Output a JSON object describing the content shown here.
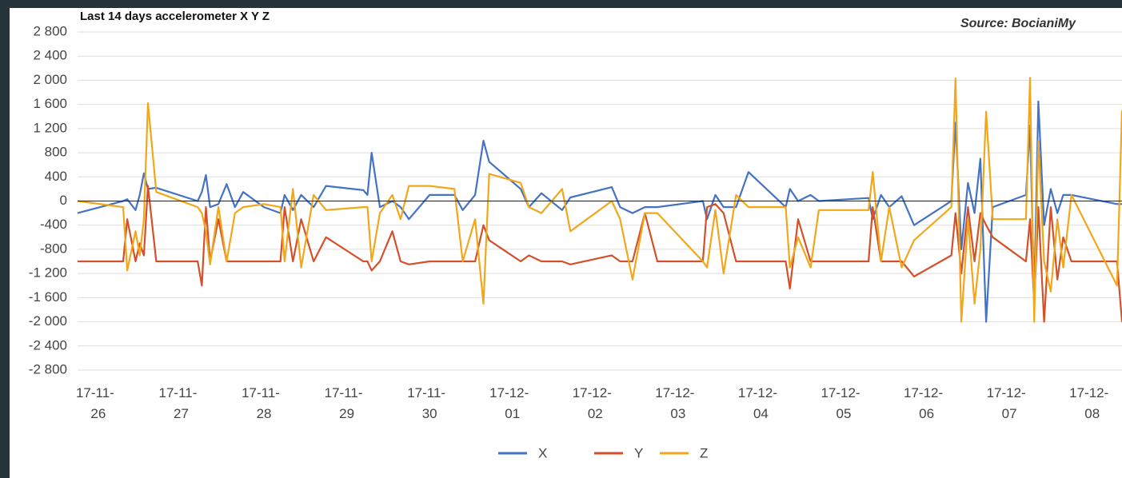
{
  "chart_data": {
    "type": "line",
    "title": "Last 14 days accelerometer X Y Z",
    "source": "Source: BocianiMy",
    "grid": true,
    "legend": "bottom",
    "xlim": [
      -0.25,
      12.36
    ],
    "xticks": [
      {
        "value": 0,
        "label": "17-11-26"
      },
      {
        "value": 1,
        "label": "17-11-27"
      },
      {
        "value": 2,
        "label": "17-11-28"
      },
      {
        "value": 3,
        "label": "17-11-29"
      },
      {
        "value": 4,
        "label": "17-11-30"
      },
      {
        "value": 5,
        "label": "17-12-01"
      },
      {
        "value": 6,
        "label": "17-12-02"
      },
      {
        "value": 7,
        "label": "17-12-03"
      },
      {
        "value": 8,
        "label": "17-12-04"
      },
      {
        "value": 9,
        "label": "17-12-05"
      },
      {
        "value": 10,
        "label": "17-12-06"
      },
      {
        "value": 11,
        "label": "17-12-07"
      },
      {
        "value": 12,
        "label": "17-12-08"
      }
    ],
    "ylim": [
      -2800,
      2800
    ],
    "yticks": [
      {
        "value": 2800,
        "label": "2 800"
      },
      {
        "value": 2400,
        "label": "2 400"
      },
      {
        "value": 2000,
        "label": "2 000"
      },
      {
        "value": 1600,
        "label": "1 600"
      },
      {
        "value": 1200,
        "label": "1 200"
      },
      800,
      400,
      0,
      -400,
      -800,
      {
        "value": -1200,
        "label": "-1 200"
      },
      {
        "value": -1600,
        "label": "-1 600"
      },
      {
        "value": -2000,
        "label": "-2 000"
      },
      {
        "value": -2400,
        "label": "-2 400"
      },
      {
        "value": -2800,
        "label": "-2 800"
      }
    ],
    "x": [
      -0.25,
      0.3,
      0.35,
      0.45,
      0.5,
      0.55,
      0.6,
      0.7,
      1.2,
      1.25,
      1.3,
      1.35,
      1.45,
      1.55,
      1.65,
      1.75,
      2.0,
      2.2,
      2.25,
      2.35,
      2.45,
      2.6,
      2.75,
      3.2,
      3.25,
      3.3,
      3.4,
      3.55,
      3.65,
      3.75,
      4.0,
      4.3,
      4.4,
      4.55,
      4.65,
      4.72,
      5.1,
      5.2,
      5.35,
      5.6,
      5.7,
      6.2,
      6.3,
      6.45,
      6.6,
      6.75,
      7.3,
      7.35,
      7.45,
      7.55,
      7.7,
      7.85,
      8.3,
      8.35,
      8.45,
      8.6,
      8.7,
      9.3,
      9.35,
      9.45,
      9.55,
      9.7,
      9.85,
      10.3,
      10.35,
      10.42,
      10.5,
      10.58,
      10.65,
      10.72,
      10.8,
      11.2,
      11.25,
      11.3,
      11.35,
      11.42,
      11.5,
      11.58,
      11.65,
      11.75,
      12.3,
      12.36
    ],
    "series": [
      {
        "name": "X",
        "color": "#4472c4",
        "values": [
          -200,
          0,
          30,
          -150,
          100,
          460,
          200,
          220,
          0,
          150,
          430,
          -100,
          -50,
          280,
          -100,
          150,
          -100,
          -200,
          100,
          -150,
          100,
          -100,
          250,
          180,
          100,
          800,
          -100,
          0,
          -100,
          -300,
          100,
          100,
          -150,
          100,
          1000,
          650,
          200,
          -100,
          130,
          -150,
          60,
          230,
          -100,
          -200,
          -100,
          -100,
          0,
          -300,
          100,
          -100,
          -100,
          480,
          -100,
          200,
          0,
          100,
          0,
          50,
          -300,
          100,
          -100,
          80,
          -400,
          0,
          1300,
          -800,
          300,
          -200,
          700,
          -2000,
          -100,
          100,
          1250,
          -1600,
          1650,
          -400,
          200,
          -200,
          100,
          100,
          -50,
          -50
        ]
      },
      {
        "name": "Y",
        "color": "#d4502a",
        "values": [
          -1000,
          -1000,
          -300,
          -1000,
          -700,
          -900,
          250,
          -1000,
          -1000,
          -1400,
          -100,
          -1000,
          -300,
          -1000,
          -1000,
          -1000,
          -1000,
          -1000,
          -100,
          -1000,
          -300,
          -1000,
          -600,
          -1000,
          -1000,
          -1150,
          -1000,
          -500,
          -1000,
          -1050,
          -1000,
          -1000,
          -1000,
          -1000,
          -400,
          -650,
          -1000,
          -900,
          -1000,
          -1000,
          -1050,
          -900,
          -1000,
          -1000,
          -200,
          -1000,
          -1000,
          -100,
          -50,
          -200,
          -1000,
          -1000,
          -1000,
          -1450,
          -300,
          -1000,
          -1000,
          -1000,
          -100,
          -1000,
          -1000,
          -1000,
          -1250,
          -900,
          -200,
          -1200,
          -100,
          -1000,
          -200,
          -400,
          -600,
          -1000,
          -300,
          -1700,
          -100,
          -2000,
          -100,
          -1300,
          -600,
          -1000,
          -1000,
          -2000
        ]
      },
      {
        "name": "Z",
        "color": "#f2a71b",
        "values": [
          0,
          -100,
          -1150,
          -500,
          -900,
          -300,
          1620,
          150,
          -100,
          -200,
          -500,
          -1050,
          -100,
          -1000,
          -200,
          -100,
          -50,
          -100,
          -1000,
          200,
          -1100,
          100,
          -150,
          -100,
          -100,
          -1000,
          -200,
          100,
          -300,
          250,
          250,
          200,
          -1000,
          -300,
          -1700,
          450,
          300,
          -100,
          -200,
          200,
          -500,
          0,
          -300,
          -1300,
          -200,
          -200,
          -1000,
          -1100,
          -150,
          -1200,
          100,
          -100,
          -100,
          -1100,
          -600,
          -1100,
          -150,
          -150,
          480,
          -1000,
          -100,
          -1100,
          -650,
          -100,
          2030,
          -2000,
          -300,
          -1700,
          -800,
          1480,
          -300,
          -300,
          2040,
          -2000,
          1000,
          -1000,
          -1500,
          -300,
          -1100,
          100,
          -1400,
          1500
        ]
      }
    ]
  }
}
